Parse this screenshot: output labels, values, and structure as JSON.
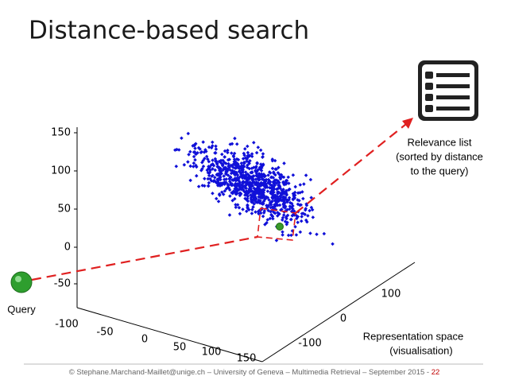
{
  "header": {
    "title": "Distance-based search"
  },
  "plot": {
    "z_ticks": [
      "150",
      "100",
      "50",
      "0",
      "-50"
    ],
    "x_ticks": [
      "-100",
      "-50",
      "0",
      "50",
      "100",
      "150"
    ],
    "y_ticks": [
      "-100",
      "0",
      "100"
    ]
  },
  "query_label": "Query",
  "relevance": [
    "Relevance list",
    "(sorted by distance",
    "to the query)"
  ],
  "space": [
    "Representation space",
    "(visualisation)"
  ],
  "footer": {
    "text": "© Stephane.Marchand-Maillet@unige.ch – University of  Geneva – Multimedia Retrieval – September 2015 - ",
    "page": "22"
  }
}
